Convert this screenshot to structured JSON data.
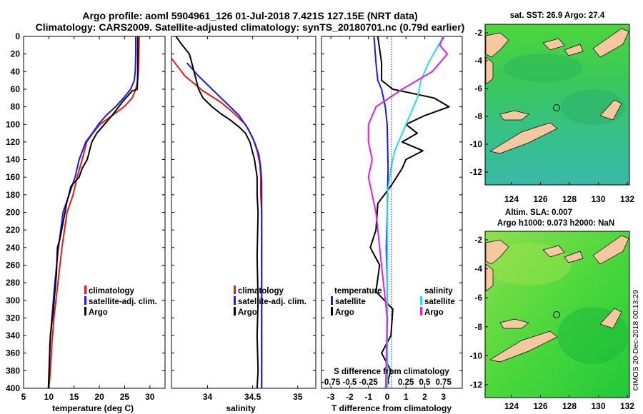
{
  "header": {
    "line1": "Argo profile: aoml 5904961_126 01-Jul-2018 7.421S 127.15E (NRT data)",
    "line2": "Climatology: CARS2009. Satellite-adjusted climatology: synTS_20180701.nc (0.79d earlier)"
  },
  "sst_panel": {
    "title": "sat. SST: 26.9 Argo: 27.4"
  },
  "sla_panel": {
    "title1": "Altim. SLA: 0.007",
    "title2": "Argo h1000: 0.073 h2000: NaN"
  },
  "stamp": "©IMOS 20-Dec-2018 00:13:29",
  "colors": {
    "climatology": "#e41a1a",
    "satellite": "#1a1ae4",
    "argo": "#000000",
    "sat_salinity": "#22e0e8",
    "argo_salinity": "#e020e0",
    "land": "#f5c8a0"
  },
  "maps": {
    "lon_ticks": [
      "124",
      "126",
      "128",
      "130",
      "132"
    ],
    "lat_ticks": [
      "-2",
      "-4",
      "-6",
      "-8",
      "-10",
      "-12"
    ]
  },
  "chart_data": [
    {
      "type": "line",
      "title": "",
      "xlabel": "temperature (deg C)",
      "ylabel": "",
      "xlim": [
        5,
        33
      ],
      "ylim": [
        400,
        0
      ],
      "xticks": [
        "5",
        "10",
        "15",
        "20",
        "25",
        "30"
      ],
      "yticks": [
        "0",
        "20",
        "40",
        "60",
        "80",
        "100",
        "120",
        "140",
        "160",
        "180",
        "200",
        "220",
        "240",
        "260",
        "280",
        "300",
        "320",
        "340",
        "360",
        "380",
        "400"
      ],
      "legend": [
        "climatology",
        "satellite-adj. clim.",
        "Argo"
      ],
      "series": [
        {
          "name": "climatology",
          "color": "#e41a1a",
          "x": [
            27.9,
            27.8,
            27.7,
            27.6,
            27.2,
            26.5,
            24.9,
            22.5,
            20.1,
            18.7,
            17.5,
            16.6,
            15.6,
            14.8,
            13.6,
            12.6,
            11.8,
            11.0,
            10.6,
            10.3,
            10.0
          ],
          "y": [
            0,
            20,
            40,
            50,
            60,
            70,
            80,
            90,
            100,
            110,
            120,
            140,
            160,
            180,
            200,
            240,
            280,
            320,
            350,
            380,
            400
          ]
        },
        {
          "name": "satellite-adj. clim.",
          "color": "#1a1ae4",
          "x": [
            27.2,
            27.2,
            27.1,
            26.9,
            26.2,
            24.8,
            23.2,
            21.3,
            19.8,
            18.6,
            17.3,
            16.0,
            15.2,
            14.0,
            12.8,
            11.9,
            11.2,
            10.6,
            10.2,
            10.0
          ],
          "y": [
            0,
            20,
            40,
            50,
            60,
            70,
            80,
            90,
            100,
            110,
            120,
            140,
            160,
            180,
            200,
            240,
            280,
            320,
            350,
            400
          ]
        },
        {
          "name": "Argo",
          "color": "#000000",
          "x": [
            27.6,
            27.6,
            27.6,
            27.5,
            26.5,
            24.5,
            22.5,
            21.0,
            19.5,
            18.5,
            17.6,
            16.6,
            16.0,
            14.4,
            13.5,
            13.2,
            12.2,
            11.7,
            11.5,
            11.2,
            10.9,
            10.3,
            10.1,
            9.9
          ],
          "y": [
            0,
            20,
            40,
            60,
            62,
            75,
            90,
            100,
            110,
            120,
            140,
            150,
            160,
            170,
            190,
            200,
            230,
            240,
            270,
            290,
            310,
            340,
            370,
            400
          ]
        }
      ]
    },
    {
      "type": "line",
      "title": "",
      "xlabel": "salinity",
      "ylabel": "",
      "xlim": [
        33.6,
        35.2
      ],
      "ylim": [
        400,
        0
      ],
      "xticks": [
        "34",
        "34.5",
        "35"
      ],
      "legend": [
        "climatology",
        "satellite-adj. clim.",
        "Argo"
      ],
      "series": [
        {
          "name": "climatology",
          "color": "#e41a1a",
          "x": [
            33.6,
            33.75,
            33.95,
            34.15,
            34.3,
            34.42,
            34.5,
            34.55,
            34.58,
            34.59,
            34.59,
            34.6,
            34.6,
            34.6,
            34.6
          ],
          "y": [
            25,
            45,
            62,
            75,
            88,
            100,
            115,
            130,
            145,
            160,
            180,
            200,
            240,
            300,
            400
          ]
        },
        {
          "name": "satellite-adj. clim.",
          "color": "#1a1ae4",
          "x": [
            33.77,
            33.9,
            34.05,
            34.2,
            34.35,
            34.45,
            34.52,
            34.57,
            34.59,
            34.6,
            34.6,
            34.6,
            34.6,
            34.6
          ],
          "y": [
            30,
            45,
            60,
            75,
            90,
            105,
            120,
            135,
            150,
            165,
            180,
            240,
            300,
            400
          ]
        },
        {
          "name": "Argo",
          "color": "#000000",
          "x": [
            33.65,
            33.72,
            33.8,
            33.85,
            33.9,
            33.95,
            34.05,
            34.15,
            34.25,
            34.35,
            34.42,
            34.47,
            34.52,
            34.55,
            34.55,
            34.56,
            34.55,
            34.56,
            34.55,
            34.56,
            34.55
          ],
          "y": [
            0,
            10,
            20,
            40,
            60,
            70,
            80,
            88,
            95,
            103,
            110,
            120,
            140,
            160,
            180,
            200,
            250,
            300,
            340,
            380,
            400
          ]
        }
      ]
    },
    {
      "type": "line",
      "title": "",
      "xlabel": "T difference from climatology",
      "x2label": "S difference from climatology",
      "xlim": [
        -3.5,
        4
      ],
      "ylim": [
        400,
        0
      ],
      "xticks": [
        "-3",
        "-2",
        "-1",
        "0",
        "1",
        "2",
        "3"
      ],
      "x2ticks": [
        "-0.75",
        "-0.5",
        "-0.25",
        "0",
        "0.25",
        "0.5",
        "0.75"
      ],
      "legend_left_title": "temperature",
      "legend_right_title": "salinity",
      "legend_left": [
        "satellite",
        "Argo"
      ],
      "legend_right": [
        "satellite",
        "Argo"
      ],
      "series": [
        {
          "name": "T satellite",
          "color": "#1a1ae4",
          "x": [
            -0.7,
            -0.6,
            -0.5,
            -0.3,
            -0.1,
            0.0,
            0.05,
            0.0,
            -0.05,
            0.0,
            0.0,
            0.0,
            0.0,
            0.0
          ],
          "y": [
            0,
            30,
            50,
            60,
            80,
            100,
            150,
            200,
            240,
            280,
            320,
            350,
            380,
            400
          ]
        },
        {
          "name": "T Argo",
          "color": "#000000",
          "x": [
            -0.5,
            -0.3,
            -0.3,
            0.3,
            2.5,
            3.3,
            2.0,
            1.0,
            1.6,
            0.8,
            1.9,
            1.0,
            0.8,
            0.5,
            0.2,
            -0.5,
            -0.6,
            -0.9,
            -0.4,
            -0.6,
            0.3,
            0.2,
            -0.3,
            0.2,
            -0.1
          ],
          "y": [
            0,
            30,
            50,
            60,
            70,
            80,
            90,
            100,
            110,
            120,
            130,
            140,
            150,
            160,
            170,
            190,
            220,
            240,
            260,
            290,
            310,
            340,
            360,
            380,
            400
          ]
        },
        {
          "name": "S satellite",
          "color": "#22e0e8",
          "x": [
            0.75,
            0.65,
            0.55,
            0.45,
            0.4,
            0.3,
            0.2,
            0.1,
            0.05,
            0.0,
            0.0,
            0.0,
            0.0,
            0.0
          ],
          "y": [
            0,
            15,
            30,
            50,
            70,
            90,
            110,
            130,
            150,
            180,
            220,
            280,
            340,
            400
          ]
        },
        {
          "name": "S Argo",
          "color": "#e020e0",
          "x": [
            0.75,
            0.7,
            0.8,
            0.6,
            0.2,
            -0.15,
            -0.25,
            -0.25,
            -0.2,
            -0.25,
            -0.2,
            -0.15,
            -0.1,
            -0.05,
            0.0,
            -0.02
          ],
          "y": [
            0,
            10,
            20,
            40,
            60,
            80,
            100,
            120,
            140,
            160,
            180,
            200,
            240,
            280,
            320,
            400
          ]
        }
      ]
    }
  ]
}
